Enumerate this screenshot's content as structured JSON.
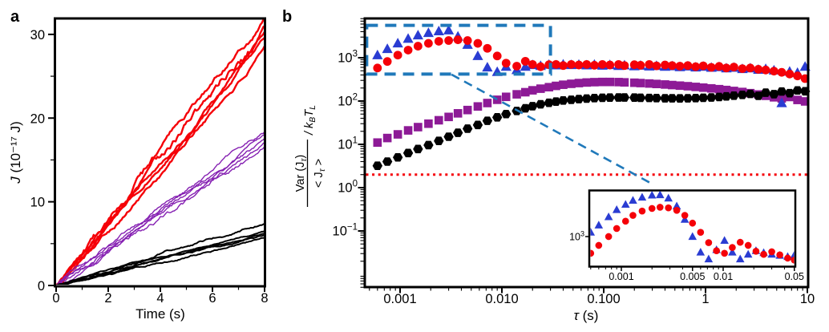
{
  "figure": {
    "background": "#ffffff"
  },
  "chart_data": [
    {
      "id": "a",
      "type": "line",
      "panel_label": "a",
      "xlabel": "Time (s)",
      "ylabel_j": "J",
      "ylabel_rest": " (10⁻¹⁷ J)",
      "xlim": [
        0,
        8.05
      ],
      "ylim": [
        0,
        31.9
      ],
      "x_ticks": [
        {
          "v": 0,
          "label": "0"
        },
        {
          "v": 2,
          "label": "2"
        },
        {
          "v": 4,
          "label": "4"
        },
        {
          "v": 6,
          "label": "6"
        },
        {
          "v": 8,
          "label": "8"
        }
      ],
      "x_minor_ticks": [
        1,
        3,
        5,
        7
      ],
      "y_ticks": [
        {
          "v": 0,
          "label": "0"
        },
        {
          "v": 10,
          "label": "10"
        },
        {
          "v": 20,
          "label": "20"
        },
        {
          "v": 30,
          "label": "30"
        }
      ],
      "y_minor_ticks": [
        5,
        15,
        25
      ],
      "series": [
        {
          "name": "red-trajectories",
          "color": "#f50008",
          "stroke_width": 2.4,
          "n_lines": 5,
          "end_values": [
            28.6,
            29.6,
            30.3,
            31.0,
            31.8
          ],
          "noise_amplitude": 1.25
        },
        {
          "name": "purple-trajectories",
          "color": "#8520b2",
          "stroke_width": 1.4,
          "n_lines": 5,
          "end_values": [
            16.6,
            17.1,
            17.6,
            18.0,
            18.4
          ],
          "noise_amplitude": 0.6
        },
        {
          "name": "black-trajectories",
          "color": "#000000",
          "stroke_width": 2.0,
          "n_lines": 5,
          "end_values": [
            5.7,
            6.0,
            6.2,
            6.5,
            7.4
          ],
          "noise_amplitude": 0.35
        }
      ]
    },
    {
      "id": "b",
      "type": "scatter",
      "panel_label": "b",
      "xscale": "log",
      "yscale": "log",
      "xlim": [
        0.00046,
        10.2
      ],
      "ylim": [
        0.005,
        8300
      ],
      "xlabel_tau": "τ",
      "xlabel_rest": " (s)",
      "ylabel": {
        "num_main": "Var (J",
        "num_sub": "τ",
        "num_close": ")",
        "den_main": "< J",
        "den_sub": "τ",
        "den_close": " >",
        "divider_k": "/ k",
        "k_sub": "B",
        "t": "T",
        "t_sub": "L"
      },
      "x_ticks": [
        {
          "v": 0.001,
          "label": "0.001"
        },
        {
          "v": 0.01,
          "label": "0.010"
        },
        {
          "v": 0.1,
          "label": "0.100"
        },
        {
          "v": 1,
          "label": "1"
        },
        {
          "v": 10,
          "label": "10"
        }
      ],
      "y_ticks": [
        {
          "v": 1000,
          "base": "10",
          "exp": "3"
        },
        {
          "v": 100,
          "base": "10",
          "exp": "2"
        },
        {
          "v": 10,
          "base": "10",
          "exp": "1"
        },
        {
          "v": 1,
          "base": "10",
          "exp": "0"
        },
        {
          "v": 0.1,
          "base": "10",
          "exp": "−1"
        }
      ],
      "reference_line": {
        "value": 2,
        "color": "#f50008",
        "style": "dotted"
      },
      "zoom_box": {
        "x1": 0.00047,
        "x2": 0.03,
        "y1": 420,
        "y2": 5600,
        "color": "#2079ba",
        "style": "dashed"
      },
      "connector_line": {
        "x1": 0.0032,
        "y1": 410,
        "x2": 0.295,
        "y2": 1.24,
        "color": "#2079ba",
        "style": "dashed"
      },
      "series": [
        {
          "name": "purple-squares",
          "marker": "square",
          "color": "#8d1a96",
          "tau": [
            0.0006,
            0.00075,
            0.00095,
            0.0012,
            0.0015,
            0.0019,
            0.0024,
            0.003,
            0.0037,
            0.0046,
            0.0058,
            0.0072,
            0.009,
            0.011,
            0.014,
            0.017,
            0.02,
            0.024,
            0.029,
            0.034,
            0.04,
            0.048,
            0.057,
            0.068,
            0.081,
            0.097,
            0.115,
            0.14,
            0.16,
            0.2,
            0.23,
            0.28,
            0.33,
            0.4,
            0.47,
            0.56,
            0.67,
            0.8,
            0.95,
            1.14,
            1.36,
            1.6,
            1.9,
            2.3,
            2.75,
            3.3,
            3.9,
            4.7,
            5.6,
            6.7,
            8.0,
            9.5
          ],
          "values": [
            11,
            14,
            17,
            21,
            25,
            30,
            36,
            43,
            52,
            62,
            75,
            90,
            107,
            125,
            143,
            160,
            177,
            193,
            209,
            224,
            238,
            250,
            260,
            268,
            273,
            276,
            276,
            274,
            270,
            265,
            260,
            254,
            248,
            241,
            234,
            227,
            220,
            212,
            204,
            196,
            188,
            180,
            171,
            162,
            152,
            142,
            132,
            122,
            115,
            124,
            106,
            98
          ]
        },
        {
          "name": "black-hexagons",
          "marker": "hexagon",
          "color": "#000000",
          "tau": [
            0.0006,
            0.00075,
            0.00095,
            0.0012,
            0.0015,
            0.0019,
            0.0024,
            0.003,
            0.0037,
            0.0046,
            0.0058,
            0.0072,
            0.009,
            0.011,
            0.014,
            0.017,
            0.02,
            0.024,
            0.029,
            0.034,
            0.04,
            0.048,
            0.057,
            0.068,
            0.081,
            0.097,
            0.115,
            0.14,
            0.16,
            0.2,
            0.23,
            0.28,
            0.33,
            0.4,
            0.47,
            0.56,
            0.67,
            0.8,
            0.95,
            1.14,
            1.36,
            1.6,
            1.9,
            2.3,
            2.75,
            3.3,
            3.9,
            4.7,
            5.6,
            6.7,
            8.0,
            9.5
          ],
          "values": [
            3.2,
            4,
            5,
            6.3,
            7.8,
            9.6,
            12,
            15,
            18.5,
            23,
            28,
            35,
            42,
            50,
            59,
            68,
            76,
            84,
            91,
            97,
            103,
            107,
            111,
            114,
            117,
            119,
            120,
            121,
            121,
            120,
            119,
            118,
            117,
            116,
            116,
            115,
            116,
            117,
            119,
            121,
            124,
            128,
            133,
            139,
            146,
            132,
            156,
            144,
            166,
            152,
            176,
            168
          ]
        },
        {
          "name": "blue-triangles",
          "marker": "triangle",
          "color": "#2a3cd2",
          "tau": [
            0.0006,
            0.00075,
            0.00095,
            0.0012,
            0.0015,
            0.0019,
            0.0024,
            0.003,
            0.0037,
            0.0046,
            0.0058,
            0.0072,
            0.009,
            0.011,
            0.014,
            0.017,
            0.02,
            0.024,
            0.029,
            0.034,
            0.04,
            0.048,
            0.057,
            0.068,
            0.081,
            0.097,
            0.115,
            0.14,
            0.16,
            0.2,
            0.23,
            0.28,
            0.33,
            0.4,
            0.47,
            0.56,
            0.67,
            0.8,
            0.95,
            1.14,
            1.36,
            1.6,
            1.9,
            2.3,
            2.75,
            3.3,
            3.9,
            4.7,
            5.6,
            6.7,
            8.0,
            9.5
          ],
          "values": [
            1150,
            1600,
            2150,
            2750,
            3300,
            3750,
            4100,
            4300,
            3100,
            2000,
            1100,
            600,
            470,
            620,
            520,
            620,
            680,
            650,
            690,
            670,
            700,
            680,
            690,
            670,
            690,
            660,
            680,
            650,
            670,
            640,
            660,
            630,
            650,
            620,
            640,
            610,
            630,
            600,
            620,
            590,
            610,
            570,
            590,
            550,
            570,
            530,
            550,
            510,
            90,
            480,
            450,
            620
          ]
        },
        {
          "name": "red-circles",
          "marker": "circle",
          "color": "#f50008",
          "tau": [
            0.0006,
            0.00075,
            0.00095,
            0.0012,
            0.0015,
            0.0019,
            0.0024,
            0.003,
            0.0037,
            0.0046,
            0.0058,
            0.0072,
            0.009,
            0.011,
            0.014,
            0.017,
            0.02,
            0.024,
            0.029,
            0.034,
            0.04,
            0.048,
            0.057,
            0.068,
            0.081,
            0.097,
            0.115,
            0.14,
            0.16,
            0.2,
            0.23,
            0.28,
            0.33,
            0.4,
            0.47,
            0.56,
            0.67,
            0.8,
            0.95,
            1.14,
            1.36,
            1.6,
            1.9,
            2.3,
            2.75,
            3.3,
            3.9,
            4.7,
            5.6,
            6.7,
            8.0,
            9.5
          ],
          "values": [
            580,
            820,
            1150,
            1500,
            1850,
            2150,
            2400,
            2500,
            2600,
            2500,
            2150,
            1650,
            1100,
            750,
            640,
            830,
            700,
            620,
            690,
            700,
            660,
            700,
            680,
            700,
            670,
            700,
            680,
            700,
            660,
            690,
            670,
            700,
            650,
            680,
            660,
            640,
            660,
            620,
            650,
            600,
            630,
            580,
            610,
            560,
            580,
            540,
            520,
            490,
            460,
            420,
            380,
            330
          ]
        }
      ],
      "inset": {
        "xscale": "log",
        "yscale": "log",
        "xlim": [
          0.00048,
          0.051
        ],
        "ylim": [
          420,
          4600
        ],
        "x_ticks": [
          {
            "v": 0.001,
            "label": "0.001"
          },
          {
            "v": 0.005,
            "label": "0.005"
          },
          {
            "v": 0.01,
            "label": "0.01"
          },
          {
            "v": 0.05,
            "label": "0.05"
          }
        ],
        "y_ticks": [
          {
            "v": 1000,
            "base": "10",
            "exp": "3"
          }
        ],
        "series": [
          {
            "name": "blue-triangles-inset",
            "marker": "triangle",
            "color": "#2a3cd2",
            "tau": [
              0.0005,
              0.0006,
              0.00075,
              0.0009,
              0.0011,
              0.0013,
              0.0016,
              0.002,
              0.0024,
              0.0029,
              0.0035,
              0.0042,
              0.005,
              0.006,
              0.0072,
              0.0086,
              0.0103,
              0.0123,
              0.0147,
              0.0176,
              0.021,
              0.025,
              0.03,
              0.036,
              0.043,
              0.05
            ],
            "values": [
              1150,
              1450,
              1900,
              2400,
              2850,
              3250,
              3600,
              3850,
              3900,
              3500,
              2700,
              1750,
              1000,
              600,
              480,
              650,
              880,
              600,
              480,
              560,
              630,
              590,
              560,
              540,
              520,
              545
            ]
          },
          {
            "name": "red-circles-inset",
            "marker": "circle",
            "color": "#f50008",
            "tau": [
              0.0005,
              0.0006,
              0.00075,
              0.0009,
              0.0011,
              0.0013,
              0.0016,
              0.002,
              0.0024,
              0.0029,
              0.0035,
              0.0042,
              0.005,
              0.006,
              0.0072,
              0.0086,
              0.0103,
              0.0123,
              0.0147,
              0.0176,
              0.021,
              0.025,
              0.03,
              0.036,
              0.043,
              0.05
            ],
            "values": [
              580,
              750,
              1000,
              1300,
              1650,
              2000,
              2300,
              2500,
              2600,
              2550,
              2350,
              2000,
              1550,
              1150,
              820,
              630,
              580,
              700,
              830,
              750,
              620,
              560,
              610,
              550,
              495,
              465
            ]
          }
        ]
      }
    }
  ]
}
